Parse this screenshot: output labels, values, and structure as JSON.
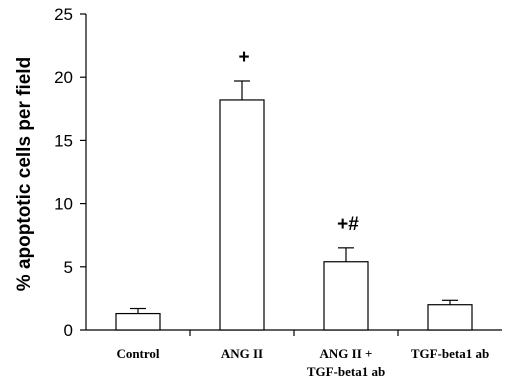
{
  "chart_data": {
    "type": "bar",
    "title": "",
    "xlabel": "",
    "ylabel": "% apoptotic cells per field",
    "ylim": [
      0,
      25
    ],
    "yticks": [
      0,
      5,
      10,
      15,
      20,
      25
    ],
    "grid": false,
    "categories": [
      [
        "Control"
      ],
      [
        "ANG II"
      ],
      [
        "ANG II +",
        "TGF-beta1 ab"
      ],
      [
        "TGF-beta1 ab"
      ]
    ],
    "values": [
      1.3,
      18.2,
      5.4,
      2.0
    ],
    "errors": [
      0.4,
      1.5,
      1.1,
      0.35
    ],
    "annotations": [
      "",
      "+",
      "+#",
      ""
    ],
    "colors": {
      "bar_fill": "#ffffff",
      "stroke": "#000000"
    }
  }
}
